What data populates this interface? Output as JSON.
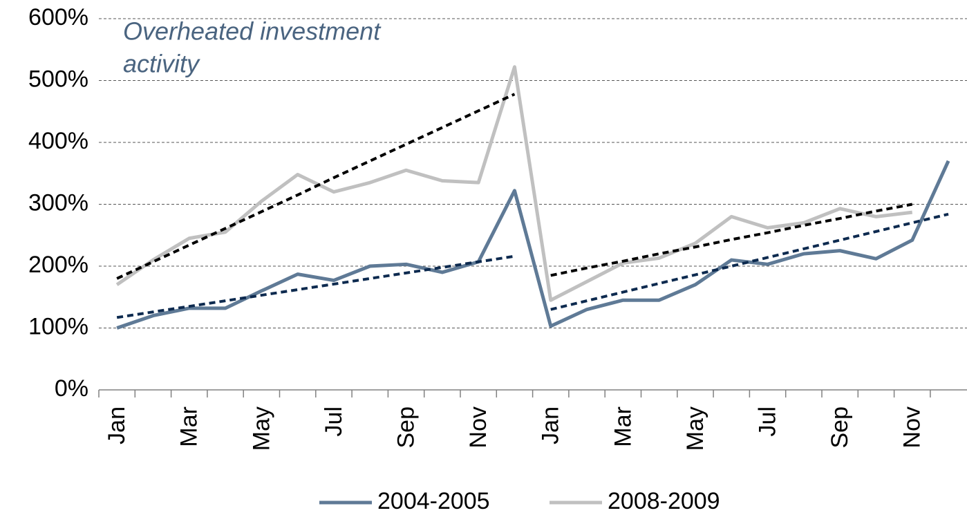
{
  "chart_data": {
    "type": "line",
    "annotation": [
      "Overheated investment",
      "activity"
    ],
    "categories": [
      "Jan",
      null,
      "Mar",
      null,
      "May",
      null,
      "Jul",
      null,
      "Sep",
      null,
      "Nov",
      null,
      "Jan",
      null,
      "Mar",
      null,
      "May",
      null,
      "Jul",
      null,
      "Sep",
      null,
      "Nov",
      null
    ],
    "series": [
      {
        "name": "2004-2005",
        "color": "#5f7a96",
        "values": [
          100,
          120,
          132,
          132,
          160,
          187,
          177,
          200,
          203,
          190,
          207,
          322,
          103,
          130,
          145,
          145,
          170,
          210,
          203,
          220,
          225,
          212,
          242,
          370
        ]
      },
      {
        "name": "2008-2009",
        "color": "#c0c0c0",
        "values": [
          170,
          210,
          245,
          255,
          305,
          348,
          320,
          335,
          355,
          338,
          335,
          522,
          145,
          175,
          205,
          213,
          237,
          280,
          262,
          270,
          293,
          280,
          287,
          null
        ]
      }
    ],
    "trendlines": [
      {
        "color": "#0d2a4f",
        "values": [
          117,
          126,
          135,
          144,
          153,
          162,
          171,
          180,
          189,
          198,
          207,
          216,
          null,
          null,
          null,
          null,
          null,
          null,
          null,
          null,
          null,
          null,
          null,
          null
        ]
      },
      {
        "color": "#0d2a4f",
        "values": [
          null,
          null,
          null,
          null,
          null,
          null,
          null,
          null,
          null,
          null,
          null,
          null,
          130,
          144,
          158,
          172,
          186,
          200,
          214,
          228,
          242,
          256,
          270,
          284
        ]
      },
      {
        "color": "#000000",
        "values": [
          180,
          207,
          234,
          261,
          288,
          315,
          343,
          370,
          397,
          424,
          451,
          478,
          null,
          null,
          null,
          null,
          null,
          null,
          null,
          null,
          null,
          null,
          null,
          null
        ]
      },
      {
        "color": "#000000",
        "values": [
          null,
          null,
          null,
          null,
          null,
          null,
          null,
          null,
          null,
          null,
          null,
          null,
          185,
          197,
          208,
          220,
          231,
          243,
          254,
          266,
          277,
          289,
          300,
          null
        ]
      }
    ],
    "ylim": [
      0,
      600
    ],
    "yticks": [
      {
        "value": 0,
        "label": "0%"
      },
      {
        "value": 100,
        "label": "100%"
      },
      {
        "value": 200,
        "label": "200%"
      },
      {
        "value": 300,
        "label": "300%"
      },
      {
        "value": 400,
        "label": "400%"
      },
      {
        "value": 500,
        "label": "500%"
      },
      {
        "value": 600,
        "label": "600%"
      }
    ],
    "grid": true,
    "legend": "bottom"
  }
}
